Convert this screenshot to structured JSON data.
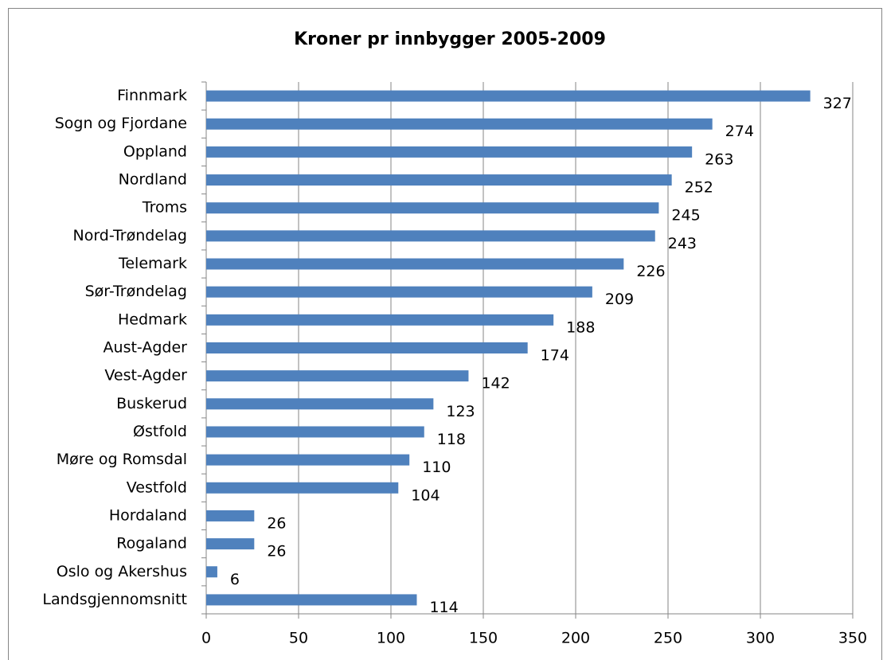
{
  "chart_data": {
    "type": "bar",
    "orientation": "horizontal",
    "title": "Kroner pr innbygger 2005-2009",
    "categories": [
      "Finnmark",
      "Sogn og Fjordane",
      "Oppland",
      "Nordland",
      "Troms",
      "Nord-Trøndelag",
      "Telemark",
      "Sør-Trøndelag",
      "Hedmark",
      "Aust-Agder",
      "Vest-Agder",
      "Buskerud",
      "Østfold",
      "Møre og Romsdal",
      "Vestfold",
      "Hordaland",
      "Rogaland",
      "Oslo og Akershus",
      "Landsgjennomsnitt"
    ],
    "values": [
      327,
      274,
      263,
      252,
      245,
      243,
      226,
      209,
      188,
      174,
      142,
      123,
      118,
      110,
      104,
      26,
      26,
      6,
      114
    ],
    "color": "#4f81bd",
    "xlim": [
      0,
      350
    ],
    "xticks": [
      0,
      50,
      100,
      150,
      200,
      250,
      300,
      350
    ],
    "grid": true
  }
}
